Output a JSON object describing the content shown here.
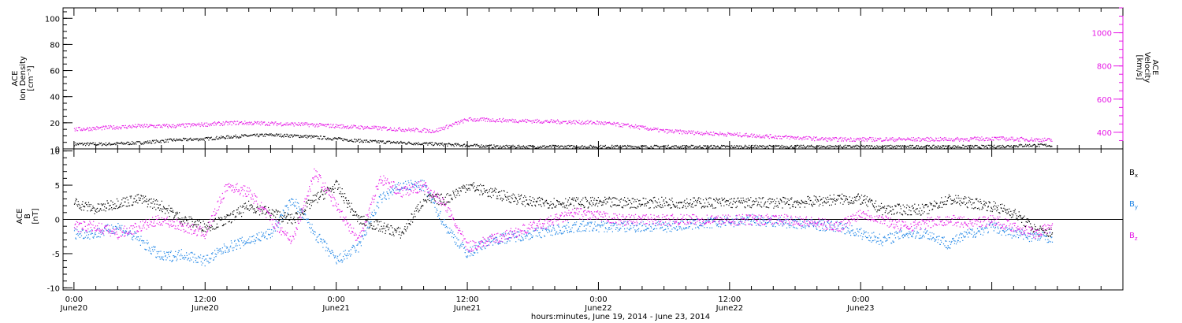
{
  "colors": {
    "axis": "#000000",
    "density": "#000000",
    "velocity": "#e619e6",
    "bx": "#000000",
    "by": "#1f85e6",
    "bz": "#e619e6"
  },
  "chart_data": [
    {
      "type": "scatter",
      "panel": "top",
      "ylabel_lines": [
        "ACE",
        "Ion Density",
        "[cm⁻³]"
      ],
      "ylim": [
        0,
        108
      ],
      "yticks": [
        0,
        20,
        40,
        60,
        80,
        100
      ],
      "y2label_lines": [
        "ACE",
        "Velocity",
        "[km/s]"
      ],
      "y2lim": [
        300,
        1150
      ],
      "y2ticks": [
        400,
        600,
        800,
        1000
      ],
      "series": [
        {
          "key": "density",
          "axis": "left",
          "x": [
            0,
            3,
            6,
            9,
            12,
            15,
            18,
            21,
            24,
            27,
            30,
            33,
            36,
            39,
            42,
            45,
            48,
            51,
            54,
            57,
            60,
            63,
            66,
            69,
            72,
            75,
            78,
            81,
            84,
            87,
            89.5
          ],
          "y": [
            4,
            4,
            5,
            7,
            8,
            10,
            11,
            10,
            8,
            6,
            5,
            4,
            3,
            2,
            2,
            2,
            2,
            2,
            2,
            2,
            2,
            2,
            2,
            2,
            2,
            2,
            2,
            2,
            2,
            3,
            3
          ]
        },
        {
          "key": "velocity",
          "axis": "right",
          "x": [
            0,
            3,
            6,
            9,
            12,
            15,
            18,
            21,
            24,
            27,
            30,
            33,
            36,
            39,
            42,
            45,
            48,
            51,
            54,
            57,
            60,
            63,
            66,
            69,
            72,
            75,
            78,
            81,
            84,
            87,
            89.5
          ],
          "y": [
            420,
            430,
            440,
            440,
            450,
            460,
            455,
            450,
            440,
            430,
            420,
            410,
            480,
            475,
            470,
            465,
            460,
            440,
            410,
            400,
            390,
            380,
            370,
            360,
            360,
            360,
            360,
            360,
            365,
            360,
            355
          ]
        }
      ]
    },
    {
      "type": "scatter",
      "panel": "bottom",
      "ylabel_lines": [
        "ACE",
        "B",
        "[nT]"
      ],
      "ylim": [
        -10.3,
        10.3
      ],
      "yticks": [
        -10,
        -5,
        0,
        5,
        10
      ],
      "legend": [
        "Bx",
        "By",
        "Bz"
      ],
      "series": [
        {
          "key": "bx",
          "x": [
            0,
            2,
            4,
            6,
            8,
            10,
            12,
            14,
            16,
            18,
            20,
            22,
            24,
            26,
            28,
            30,
            32,
            34,
            36,
            38,
            42,
            46,
            50,
            54,
            58,
            62,
            66,
            70,
            72,
            74,
            76,
            78,
            80,
            82,
            84,
            86,
            88,
            89.5
          ],
          "y": [
            2.5,
            1.5,
            2.5,
            3,
            2,
            0,
            -1,
            0,
            2,
            1,
            0,
            3,
            5,
            0,
            -1,
            -2,
            3,
            3,
            5,
            4,
            2.5,
            2.5,
            2.5,
            2.5,
            2.5,
            2.5,
            2.5,
            3,
            3,
            1.5,
            1.5,
            1.5,
            3,
            2.5,
            2,
            1,
            -1.5,
            -2
          ]
        },
        {
          "key": "by",
          "x": [
            0,
            2,
            4,
            6,
            8,
            10,
            12,
            14,
            16,
            18,
            20,
            22,
            24,
            26,
            28,
            30,
            32,
            34,
            36,
            38,
            42,
            46,
            50,
            54,
            58,
            62,
            66,
            70,
            72,
            74,
            76,
            78,
            80,
            82,
            84,
            86,
            88,
            89.5
          ],
          "y": [
            -2,
            -2,
            -1,
            -3,
            -5.5,
            -5,
            -6,
            -4,
            -3,
            -2,
            3,
            -2,
            -6,
            -4,
            3,
            5,
            5,
            -1,
            -5,
            -3,
            -2,
            -1,
            -1,
            -1,
            -0.5,
            0,
            -0.5,
            -1,
            -2,
            -3,
            -2,
            -2,
            -3.5,
            -2,
            -1,
            -2,
            -2.5,
            -2.5
          ]
        },
        {
          "key": "bz",
          "x": [
            0,
            2,
            4,
            6,
            8,
            10,
            12,
            14,
            16,
            18,
            20,
            22,
            24,
            26,
            28,
            30,
            32,
            34,
            36,
            38,
            42,
            46,
            50,
            54,
            58,
            62,
            66,
            70,
            72,
            74,
            76,
            78,
            80,
            82,
            84,
            86,
            88,
            89.5
          ],
          "y": [
            -1,
            -1,
            -2,
            -1,
            0,
            -1,
            -2,
            5,
            4,
            0,
            -3,
            7,
            2,
            -3,
            6,
            4,
            5,
            2,
            -4,
            -3,
            -1,
            1,
            0,
            0,
            0,
            0,
            0,
            -1,
            1,
            0,
            -1,
            -0.5,
            0,
            -0.5,
            0,
            -1,
            -2,
            -1
          ]
        }
      ]
    }
  ],
  "xaxis": {
    "lim": [
      -1,
      96
    ],
    "major_ticks": [
      0,
      12,
      24,
      36,
      48,
      60,
      72,
      84
    ],
    "minor_step": 2,
    "labels": [
      {
        "x": 0,
        "time": "0:00",
        "date": "June20"
      },
      {
        "x": 12,
        "time": "12:00",
        "date": "June20"
      },
      {
        "x": 24,
        "time": "0:00",
        "date": "June21"
      },
      {
        "x": 36,
        "time": "12:00",
        "date": "June21"
      },
      {
        "x": 48,
        "time": "0:00",
        "date": "June22"
      },
      {
        "x": 60,
        "time": "12:00",
        "date": "June22"
      },
      {
        "x": 72,
        "time": "0:00",
        "date": "June23"
      }
    ],
    "title": "hours:minutes, June 19, 2014 - June 23, 2014"
  }
}
